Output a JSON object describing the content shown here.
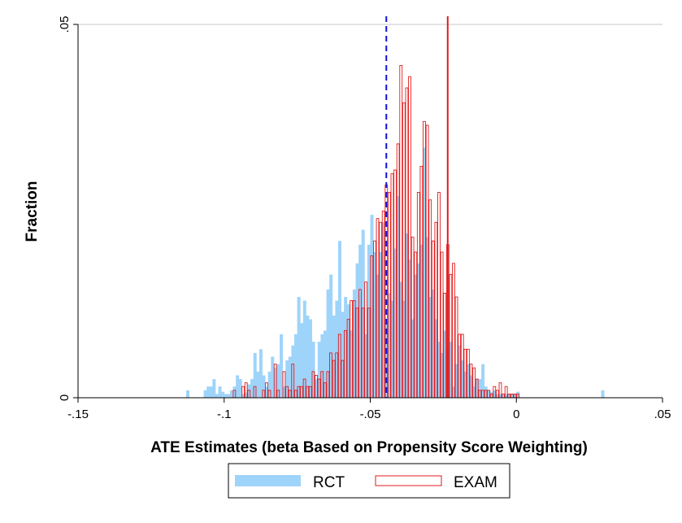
{
  "chart_data": {
    "type": "bar",
    "xlabel": "ATE Estimates (beta Based on Propensity Score Weighting)",
    "ylabel": "Fraction",
    "xlim": [
      -0.15,
      0.05
    ],
    "ylim": [
      0,
      0.05
    ],
    "xticks": [
      {
        "value": -0.15,
        "label": "-.15"
      },
      {
        "value": -0.1,
        "label": "-.1"
      },
      {
        "value": -0.05,
        "label": "-.05"
      },
      {
        "value": 0,
        "label": "0"
      },
      {
        "value": 0.05,
        "label": ".05"
      }
    ],
    "yticks": [
      {
        "value": 0,
        "label": "0"
      },
      {
        "value": 0.05,
        "label": ".05"
      }
    ],
    "grid": "horizontal",
    "legend_position": "bottom",
    "bin_width": 0.001,
    "series": [
      {
        "name": "RCT",
        "style": "filled",
        "color": "#9fd4fa",
        "bin_start": -0.113,
        "values": [
          0.001,
          0,
          0,
          0,
          0,
          0,
          0.001,
          0.0015,
          0.0015,
          0.0025,
          0.0005,
          0.0015,
          0.0008,
          0.0005,
          0.0005,
          0.001,
          0.0015,
          0.003,
          0.0025,
          0.0005,
          0.0007,
          0.0018,
          0.0025,
          0.006,
          0.0035,
          0.0065,
          0.003,
          0.0015,
          0.0035,
          0.0055,
          0.004,
          0.0045,
          0.0085,
          0.0015,
          0.005,
          0.0055,
          0.007,
          0.0085,
          0.0135,
          0.01,
          0.013,
          0.011,
          0.0105,
          0.0075,
          0.0025,
          0.0075,
          0.0085,
          0.009,
          0.0145,
          0.0165,
          0.011,
          0.013,
          0.021,
          0.0115,
          0.0135,
          0.0125,
          0.009,
          0.0145,
          0.018,
          0.0205,
          0.0225,
          0.0085,
          0.0205,
          0.0245,
          0.0195,
          0.0165,
          0.0195,
          0.0235,
          0.01,
          0.014,
          0.013,
          0.02,
          0.027,
          0.0155,
          0.013,
          0.022,
          0.0185,
          0.0105,
          0.0165,
          0.018,
          0.0205,
          0.0335,
          0.0215,
          0.0135,
          0.0145,
          0.0105,
          0.0075,
          0.006,
          0.009,
          0.0065,
          0.0075,
          0.0015,
          0.0045,
          0.007,
          0.005,
          0.0035,
          0.0045,
          0.003,
          0.0015,
          0.0025,
          0.0025,
          0.0045,
          0.0015,
          0.001,
          0.0008,
          0.001,
          0.0005,
          0.0005,
          0.0005,
          0.0005,
          0.0005,
          0.0005,
          0.0005,
          0.0008,
          0,
          0,
          0,
          0,
          0,
          0,
          0,
          0,
          0,
          0,
          0,
          0,
          0,
          0,
          0,
          0,
          0,
          0,
          0,
          0,
          0,
          0,
          0,
          0,
          0,
          0,
          0,
          0,
          0.001
        ]
      },
      {
        "name": "EXAM",
        "style": "outline",
        "color": "#e31a1c",
        "bin_start": -0.097,
        "values": [
          0.001,
          0,
          0,
          0.0015,
          0.002,
          0.001,
          0,
          0.0015,
          0,
          0,
          0.001,
          0.002,
          0.001,
          0,
          0.0045,
          0.001,
          0,
          0.0035,
          0.0015,
          0.001,
          0.0045,
          0.001,
          0.0015,
          0.0015,
          0.0025,
          0.0015,
          0.0015,
          0.0035,
          0.003,
          0.0025,
          0.0035,
          0.002,
          0.0035,
          0.006,
          0.005,
          0.006,
          0.0085,
          0.005,
          0.009,
          0.0105,
          0.013,
          0.013,
          0.012,
          0.0145,
          0.012,
          0.0155,
          0.012,
          0.019,
          0.021,
          0.024,
          0.0235,
          0.025,
          0.0285,
          0.0275,
          0.03,
          0.0305,
          0.034,
          0.0445,
          0.0395,
          0.0415,
          0.043,
          0.0215,
          0.0195,
          0.0275,
          0.031,
          0.037,
          0.0365,
          0.0265,
          0.021,
          0.0235,
          0.0275,
          0.0195,
          0.014,
          0.0205,
          0.0165,
          0.018,
          0.0135,
          0.0085,
          0.0085,
          0.0065,
          0.0065,
          0.0045,
          0.004,
          0.0025,
          0.001,
          0.001,
          0.001,
          0.001,
          0.0005,
          0.0015,
          0.001,
          0.002,
          0.0005,
          0.0015,
          0.0005,
          0.0005,
          0.0005,
          0.0005
        ]
      }
    ],
    "reference_lines": [
      {
        "name": "RCT mean",
        "x": -0.0445,
        "color": "#1010d8",
        "style": "dashed"
      },
      {
        "name": "EXAM mean",
        "x": -0.0235,
        "color": "#e31a1c",
        "style": "solid"
      }
    ],
    "legend": [
      {
        "label": "RCT",
        "swatch": "filled"
      },
      {
        "label": "EXAM",
        "swatch": "outline"
      }
    ]
  }
}
